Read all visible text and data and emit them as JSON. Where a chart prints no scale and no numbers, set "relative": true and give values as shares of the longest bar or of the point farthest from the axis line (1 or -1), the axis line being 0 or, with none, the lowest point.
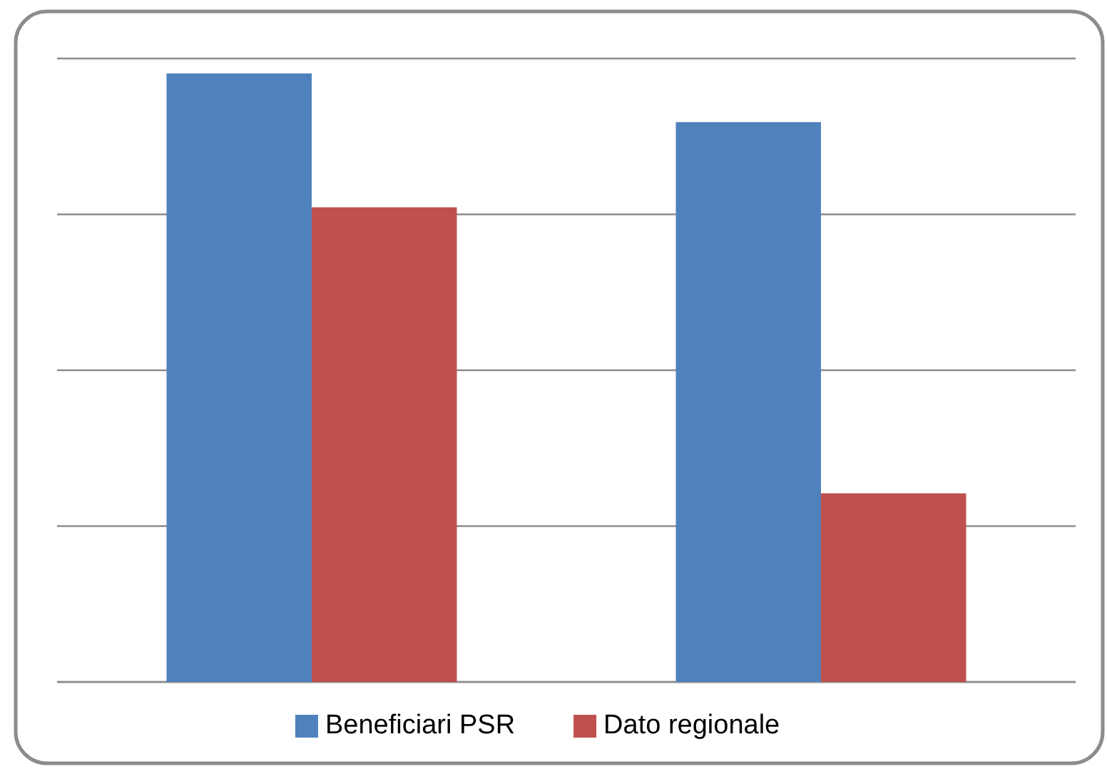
{
  "chart_data": {
    "type": "bar",
    "categories": [
      null,
      null
    ],
    "relative": true,
    "series": [
      {
        "name": "Beneficiari PSR",
        "color": "#4f81bd",
        "values": [
          1,
          0.92
        ]
      },
      {
        "name": "Dato regionale",
        "color": "#c0504d",
        "values": [
          0.78,
          0.31
        ]
      }
    ],
    "grid": true,
    "legend": "bottom"
  }
}
